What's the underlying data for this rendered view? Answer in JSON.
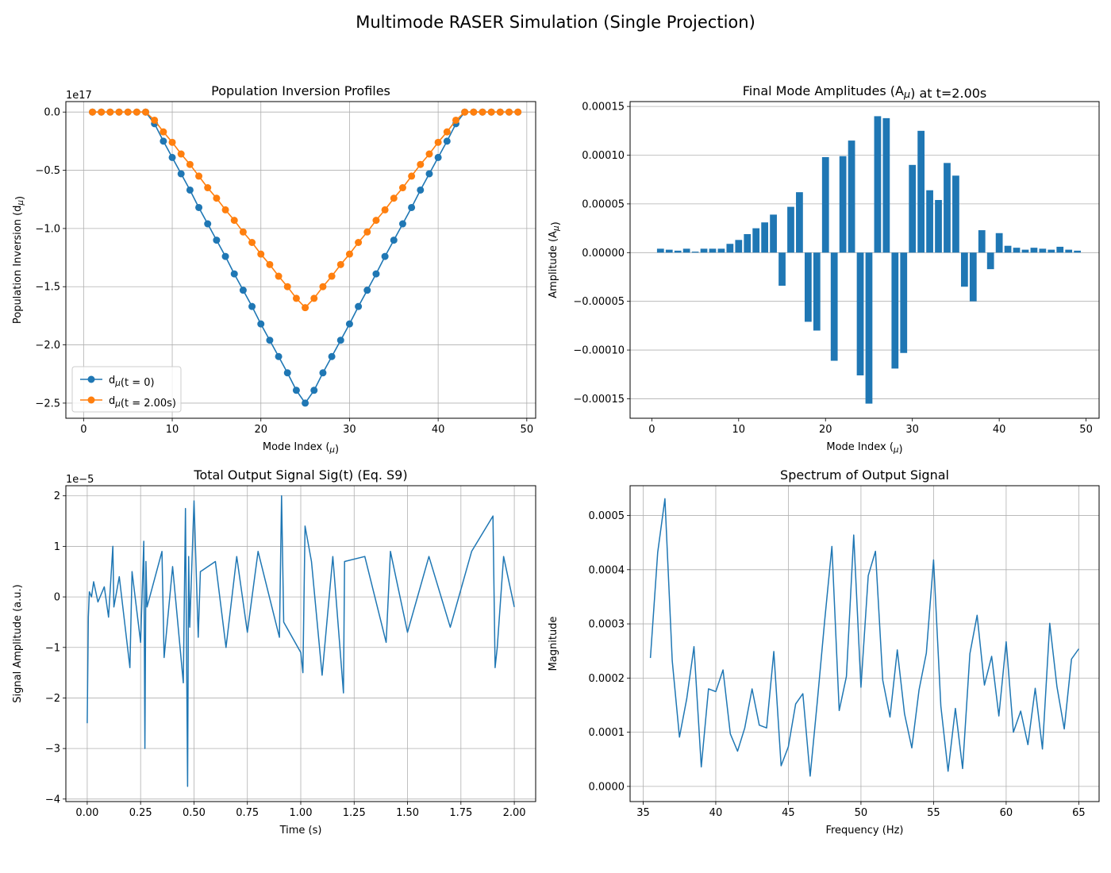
{
  "figure": {
    "suptitle": "Multimode RASER Simulation (Single Projection)"
  },
  "colors": {
    "blue": "#1f77b4",
    "orange": "#ff7f0e",
    "grid": "#b0b0b0"
  },
  "chart_data": [
    {
      "type": "line",
      "title": "Population Inversion Profiles",
      "xlabel": "Mode Index (μ)",
      "ylabel": "Population Inversion (dμ)",
      "offset_text": "1e17",
      "xlim": [
        -2,
        51
      ],
      "ylim": [
        -2.63,
        0.09
      ],
      "xticks": [
        0,
        10,
        20,
        30,
        40,
        50
      ],
      "yticks": [
        0.0,
        -0.5,
        -1.0,
        -1.5,
        -2.0,
        -2.5
      ],
      "ytick_labels": [
        "0.0",
        "−0.5",
        "−1.0",
        "−1.5",
        "−2.0",
        "−2.5"
      ],
      "grid": true,
      "legend": {
        "position": "lower-left",
        "entries": [
          "dμ(t = 0)",
          "dμ(t = 2.00s)"
        ]
      },
      "x": [
        1,
        2,
        3,
        4,
        5,
        6,
        7,
        8,
        9,
        10,
        11,
        12,
        13,
        14,
        15,
        16,
        17,
        18,
        19,
        20,
        21,
        22,
        23,
        24,
        25,
        26,
        27,
        28,
        29,
        30,
        31,
        32,
        33,
        34,
        35,
        36,
        37,
        38,
        39,
        40,
        41,
        42,
        43,
        44,
        45,
        46,
        47,
        48,
        49
      ],
      "series": [
        {
          "name": "dμ(t = 0)",
          "color": "#1f77b4",
          "values": [
            0,
            0,
            0,
            0,
            0,
            0,
            0,
            -0.1,
            -0.25,
            -0.39,
            -0.53,
            -0.67,
            -0.82,
            -0.96,
            -1.1,
            -1.24,
            -1.39,
            -1.53,
            -1.67,
            -1.82,
            -1.96,
            -2.1,
            -2.24,
            -2.39,
            -2.5,
            -2.39,
            -2.24,
            -2.1,
            -1.96,
            -1.82,
            -1.67,
            -1.53,
            -1.39,
            -1.24,
            -1.1,
            -0.96,
            -0.82,
            -0.67,
            -0.53,
            -0.39,
            -0.25,
            -0.1,
            0,
            0,
            0,
            0,
            0,
            0,
            0
          ]
        },
        {
          "name": "dμ(t = 2.00s)",
          "color": "#ff7f0e",
          "values": [
            0,
            0,
            0,
            0,
            0,
            0,
            0,
            -0.07,
            -0.17,
            -0.26,
            -0.36,
            -0.45,
            -0.55,
            -0.65,
            -0.74,
            -0.84,
            -0.93,
            -1.03,
            -1.12,
            -1.22,
            -1.31,
            -1.41,
            -1.5,
            -1.6,
            -1.68,
            -1.6,
            -1.5,
            -1.41,
            -1.31,
            -1.22,
            -1.12,
            -1.03,
            -0.93,
            -0.84,
            -0.74,
            -0.65,
            -0.55,
            -0.45,
            -0.36,
            -0.26,
            -0.17,
            -0.07,
            0,
            0,
            0,
            0,
            0,
            0,
            0
          ]
        }
      ]
    },
    {
      "type": "bar",
      "title": "Final Mode Amplitudes (Aμ) at t=2.00s",
      "xlabel": "Mode Index (μ)",
      "ylabel": "Amplitude (Aμ)",
      "xlim": [
        -2.5,
        51.5
      ],
      "ylim": [
        -0.00017,
        0.000155
      ],
      "xticks": [
        0,
        10,
        20,
        30,
        40,
        50
      ],
      "yticks": [
        0.00015,
        0.0001,
        5e-05,
        0.0,
        -5e-05,
        -0.0001,
        -0.00015
      ],
      "ytick_labels": [
        "0.00015",
        "0.00010",
        "0.00005",
        "0.00000",
        "−0.00005",
        "−0.00010",
        "−0.00015"
      ],
      "grid": "y",
      "color": "#1f77b4",
      "categories": [
        1,
        2,
        3,
        4,
        5,
        6,
        7,
        8,
        9,
        10,
        11,
        12,
        13,
        14,
        15,
        16,
        17,
        18,
        19,
        20,
        21,
        22,
        23,
        24,
        25,
        26,
        27,
        28,
        29,
        30,
        31,
        32,
        33,
        34,
        35,
        36,
        37,
        38,
        39,
        40,
        41,
        42,
        43,
        44,
        45,
        46,
        47,
        48,
        49
      ],
      "values": [
        4e-06,
        3e-06,
        2e-06,
        4e-06,
        1e-06,
        4e-06,
        4e-06,
        4e-06,
        9e-06,
        1.3e-05,
        1.9e-05,
        2.5e-05,
        3.1e-05,
        3.9e-05,
        -3.4e-05,
        4.7e-05,
        6.2e-05,
        -7.1e-05,
        -8e-05,
        9.8e-05,
        -0.000111,
        9.9e-05,
        0.000115,
        -0.000126,
        -0.000155,
        0.00014,
        0.000138,
        -0.000119,
        -0.000103,
        9e-05,
        0.000125,
        6.4e-05,
        5.4e-05,
        9.2e-05,
        7.9e-05,
        -3.5e-05,
        -5e-05,
        2.3e-05,
        -1.7e-05,
        2e-05,
        7e-06,
        5e-06,
        3e-06,
        5e-06,
        4e-06,
        3e-06,
        6e-06,
        3e-06,
        2e-06
      ]
    },
    {
      "type": "line",
      "title": "Total Output Signal Sig(t) (Eq. S9)",
      "xlabel": "Time (s)",
      "ylabel": "Signal Amplitude (a.u.)",
      "offset_text": "1e−5",
      "xlim": [
        -0.1,
        2.1
      ],
      "ylim": [
        -4.05,
        2.2
      ],
      "xticks": [
        0.0,
        0.25,
        0.5,
        0.75,
        1.0,
        1.25,
        1.5,
        1.75,
        2.0
      ],
      "xtick_labels": [
        "0.00",
        "0.25",
        "0.50",
        "0.75",
        "1.00",
        "1.25",
        "1.50",
        "1.75",
        "2.00"
      ],
      "yticks": [
        2,
        1,
        0,
        -1,
        -2,
        -3,
        -4
      ],
      "ytick_labels": [
        "2",
        "1",
        "0",
        "−1",
        "−2",
        "−3",
        "−4"
      ],
      "grid": true,
      "color": "#1f77b4",
      "x": [
        0.0,
        0.005,
        0.01,
        0.02,
        0.03,
        0.05,
        0.08,
        0.1,
        0.12,
        0.125,
        0.15,
        0.2,
        0.21,
        0.25,
        0.265,
        0.27,
        0.275,
        0.28,
        0.35,
        0.36,
        0.4,
        0.45,
        0.46,
        0.47,
        0.475,
        0.48,
        0.5,
        0.52,
        0.53,
        0.6,
        0.65,
        0.7,
        0.75,
        0.8,
        0.9,
        0.91,
        0.92,
        1.0,
        1.01,
        1.02,
        1.05,
        1.1,
        1.15,
        1.2,
        1.205,
        1.3,
        1.4,
        1.42,
        1.5,
        1.6,
        1.7,
        1.8,
        1.9,
        1.91,
        1.92,
        1.95,
        2.0
      ],
      "values": [
        -2.5,
        -0.4,
        0.1,
        0.0,
        0.3,
        -0.1,
        0.2,
        -0.4,
        1.0,
        -0.2,
        0.4,
        -1.4,
        0.5,
        -0.9,
        1.1,
        -3.0,
        0.7,
        -0.2,
        0.9,
        -1.2,
        0.6,
        -1.7,
        1.75,
        -3.75,
        0.8,
        -0.6,
        1.9,
        -0.8,
        0.5,
        0.7,
        -1.0,
        0.8,
        -0.7,
        0.9,
        -0.8,
        2.0,
        -0.5,
        -1.1,
        -1.5,
        1.4,
        0.7,
        -1.55,
        0.8,
        -1.9,
        0.7,
        0.8,
        -0.9,
        0.9,
        -0.7,
        0.8,
        -0.6,
        0.9,
        1.6,
        -1.4,
        -1.0,
        0.8,
        -0.2
      ]
    },
    {
      "type": "line",
      "title": "Spectrum of Output Signal",
      "xlabel": "Frequency (Hz)",
      "ylabel": "Magnitude",
      "xlim": [
        34.1,
        66.4
      ],
      "ylim": [
        -2.8e-05,
        0.000555
      ],
      "xticks": [
        35,
        40,
        45,
        50,
        55,
        60,
        65
      ],
      "yticks": [
        0.0,
        0.0001,
        0.0002,
        0.0003,
        0.0004,
        0.0005
      ],
      "ytick_labels": [
        "0.0000",
        "0.0001",
        "0.0002",
        "0.0003",
        "0.0004",
        "0.0005"
      ],
      "grid": true,
      "color": "#1f77b4",
      "x": [
        35.5,
        36.0,
        36.5,
        37.0,
        37.5,
        38.0,
        38.5,
        39.0,
        39.5,
        40.0,
        40.5,
        41.0,
        41.5,
        42.0,
        42.5,
        43.0,
        43.5,
        44.0,
        44.5,
        45.0,
        45.5,
        46.0,
        46.5,
        47.0,
        47.5,
        48.0,
        48.5,
        49.0,
        49.5,
        50.0,
        50.5,
        51.0,
        51.5,
        52.0,
        52.5,
        53.0,
        53.5,
        54.0,
        54.5,
        55.0,
        55.5,
        56.0,
        56.5,
        57.0,
        57.5,
        58.0,
        58.5,
        59.0,
        59.5,
        60.0,
        60.5,
        61.0,
        61.5,
        62.0,
        62.5,
        63.0,
        63.5,
        64.0,
        64.5,
        65.0
      ],
      "values": [
        0.000237,
        0.000432,
        0.000531,
        0.000232,
        9.1e-05,
        0.000162,
        0.000258,
        3.6e-05,
        0.00018,
        0.000175,
        0.000215,
        9.7e-05,
        6.5e-05,
        0.000108,
        0.00018,
        0.000113,
        0.000108,
        0.000249,
        3.8e-05,
        7.3e-05,
        0.000152,
        0.000171,
        1.9e-05,
        0.000158,
        0.000306,
        0.000443,
        0.00014,
        0.000203,
        0.000464,
        0.000183,
        0.000389,
        0.000434,
        0.000196,
        0.000128,
        0.000252,
        0.000134,
        7.1e-05,
        0.000178,
        0.000246,
        0.000418,
        0.000148,
        2.8e-05,
        0.000144,
        3.3e-05,
        0.000245,
        0.000316,
        0.000187,
        0.00024,
        0.00013,
        0.000267,
        0.0001,
        0.000139,
        7.7e-05,
        0.000181,
        6.9e-05,
        0.000301,
        0.000184,
        0.000106,
        0.000235,
        0.000254
      ]
    }
  ]
}
